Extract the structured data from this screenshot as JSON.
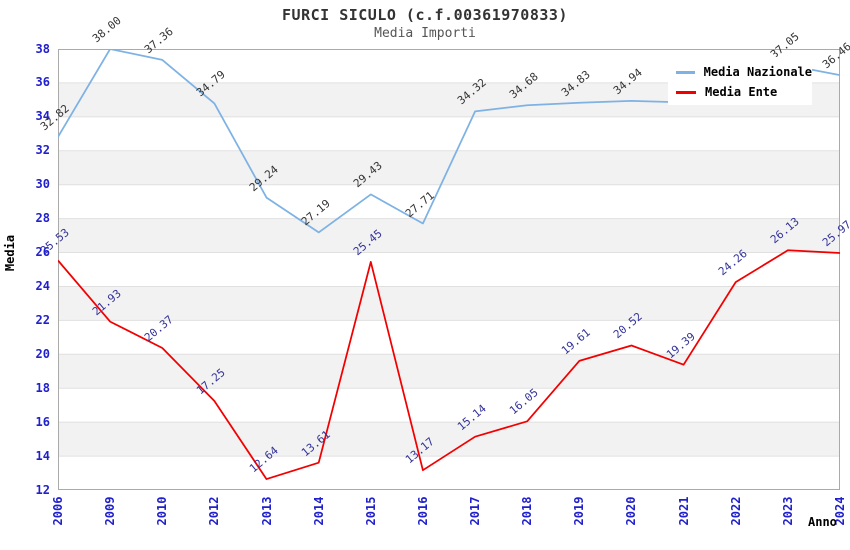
{
  "title": "FURCI SICULO (c.f.00361970833)",
  "subtitle": "Media Importi",
  "axes": {
    "y_title": "Media",
    "x_title": "Anno",
    "y_ticks": [
      38,
      36,
      34,
      32,
      30,
      28,
      26,
      24,
      22,
      20,
      18,
      16,
      14,
      12
    ],
    "ylim": [
      12,
      38
    ]
  },
  "legend": {
    "items": [
      {
        "label": "Media Nazionale",
        "color": "#7eb2e4"
      },
      {
        "label": "Media Ente",
        "color": "#f20000"
      }
    ],
    "position": "top-right"
  },
  "colors": {
    "band": "#f2f2f2",
    "grid": "#e0e0e0",
    "plot_border": "#aaaaaa",
    "axis_labels": "#2020cc",
    "title": "#333333",
    "subtitle": "#555555"
  },
  "chart_data": {
    "type": "line",
    "categories": [
      "2006",
      "2009",
      "2010",
      "2012",
      "2013",
      "2014",
      "2015",
      "2016",
      "2017",
      "2018",
      "2019",
      "2020",
      "2021",
      "2022",
      "2023",
      "2024"
    ],
    "title": "FURCI SICULO (c.f.00361970833)",
    "subtitle": "Media Importi",
    "xlabel": "Anno",
    "ylabel": "Media",
    "ylim": [
      12,
      38
    ],
    "grid": "horizontal-bands",
    "legend_position": "top-right",
    "series": [
      {
        "name": "Media Nazionale",
        "color": "#7eb2e4",
        "label_color": "#333333",
        "values": [
          32.82,
          38.0,
          37.36,
          34.79,
          29.24,
          27.19,
          29.43,
          27.71,
          34.32,
          34.68,
          34.83,
          34.94,
          34.85,
          34.8,
          37.05,
          36.46
        ],
        "labels": [
          "32.82",
          "38.00",
          "37.36",
          "34.79",
          "29.24",
          "27.19",
          "29.43",
          "27.71",
          "34.32",
          "34.68",
          "34.83",
          "34.94",
          "",
          "",
          "37.05",
          "36.46"
        ]
      },
      {
        "name": "Media Ente",
        "color": "#f20000",
        "label_color": "#333399",
        "values": [
          25.53,
          21.93,
          20.37,
          17.25,
          12.64,
          13.61,
          25.45,
          13.17,
          15.14,
          16.05,
          19.61,
          20.52,
          19.39,
          24.26,
          26.13,
          25.97
        ],
        "labels": [
          "25.53",
          "21.93",
          "20.37",
          "17.25",
          "12.64",
          "13.61",
          "25.45",
          "13.17",
          "15.14",
          "16.05",
          "19.61",
          "20.52",
          "19.39",
          "24.26",
          "26.13",
          "25.97"
        ]
      }
    ]
  }
}
